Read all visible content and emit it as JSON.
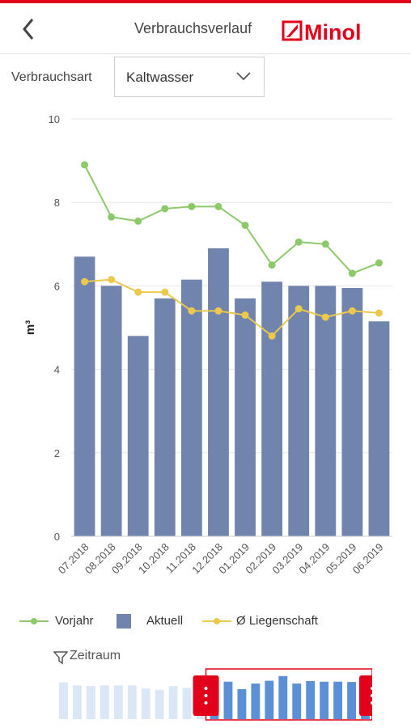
{
  "header": {
    "title": "Verbrauchsverlauf",
    "logo_text": "Minol",
    "brand_color": "#e2001a",
    "back_icon": "chevron-left-icon"
  },
  "filter": {
    "label": "Verbrauchsart",
    "selected": "Kaltwasser",
    "dropdown_icon": "chevron-down-icon"
  },
  "legend": {
    "items": [
      {
        "label": "Vorjahr",
        "color": "#8dc96a",
        "icon": "line-dot-icon"
      },
      {
        "label": "Aktuell",
        "color": "#7084ad",
        "icon": "square-icon"
      },
      {
        "label": "Ø Liegenschaft",
        "color": "#ebc94d",
        "icon": "line-dot-icon"
      }
    ]
  },
  "navigator": {
    "label": "Zeitraum",
    "icon": "filter-icon",
    "selected_range": [
      "07.2018",
      "06.2019"
    ],
    "handle_color": "#e2001a",
    "bar_color": "#5b8fd6",
    "bar_color_faded": "#dbe7f7"
  },
  "chart_data": {
    "type": "bar",
    "xlabel": "",
    "ylabel": "m³",
    "ylim": [
      0,
      10
    ],
    "yticks": [
      0,
      2,
      4,
      6,
      8,
      10
    ],
    "grid": true,
    "legend_position": "bottom",
    "categories": [
      "07.2018",
      "08.2018",
      "09.2018",
      "10.2018",
      "11.2018",
      "12.2018",
      "01.2019",
      "02.2019",
      "03.2019",
      "04.2019",
      "05.2019",
      "06.2019"
    ],
    "series": [
      {
        "name": "Aktuell",
        "kind": "bar",
        "color": "#7084ad",
        "values": [
          6.7,
          6.0,
          4.8,
          5.7,
          6.15,
          6.9,
          5.7,
          6.1,
          6.0,
          6.0,
          5.95,
          5.15
        ]
      },
      {
        "name": "Vorjahr",
        "kind": "line",
        "color": "#8dc96a",
        "values": [
          8.9,
          7.65,
          7.55,
          7.85,
          7.9,
          7.9,
          7.45,
          6.5,
          7.05,
          7.0,
          6.3,
          6.55
        ]
      },
      {
        "name": "Ø Liegenschaft",
        "kind": "line",
        "color": "#ebc94d",
        "values": [
          6.1,
          6.15,
          5.85,
          5.85,
          5.4,
          5.4,
          5.3,
          4.8,
          5.45,
          5.25,
          5.4,
          5.35
        ]
      }
    ],
    "navigator_values": [
      5.9,
      5.4,
      5.3,
      5.4,
      5.4,
      5.4,
      4.9,
      4.7,
      5.3,
      5.0,
      5.4,
      6.7,
      6.0,
      4.8,
      5.7,
      6.15,
      6.9,
      5.7,
      6.1,
      6.0,
      6.0,
      5.95,
      5.15
    ]
  }
}
